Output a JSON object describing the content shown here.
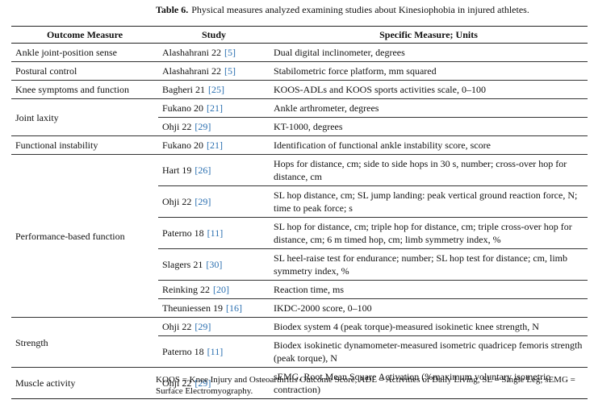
{
  "caption": {
    "label": "Table 6.",
    "text": "Physical measures analyzed examining studies about Kinesiophobia in injured athletes."
  },
  "table": {
    "headers": [
      "Outcome Measure",
      "Study",
      "Specific Measure; Units"
    ],
    "groups": [
      {
        "outcome": "Ankle joint-position sense",
        "rows": [
          {
            "study": "Alashahrani 22",
            "ref": "[5]",
            "measure": "Dual digital inclinometer, degrees"
          }
        ]
      },
      {
        "outcome": "Postural control",
        "rows": [
          {
            "study": "Alashahrani 22",
            "ref": "[5]",
            "measure": "Stabilometric force platform, mm squared"
          }
        ]
      },
      {
        "outcome": "Knee symptoms and function",
        "rows": [
          {
            "study": "Bagheri 21",
            "ref": "[25]",
            "measure": "KOOS-ADLs and KOOS sports activities scale, 0–100"
          }
        ]
      },
      {
        "outcome": "Joint laxity",
        "rows": [
          {
            "study": "Fukano 20",
            "ref": "[21]",
            "measure": "Ankle arthrometer, degrees"
          },
          {
            "study": "Ohji 22",
            "ref": "[29]",
            "measure": "KT-1000, degrees"
          }
        ]
      },
      {
        "outcome": "Functional instability",
        "rows": [
          {
            "study": "Fukano 20",
            "ref": "[21]",
            "measure": "Identification of functional ankle instability score, score"
          }
        ]
      },
      {
        "outcome": "Performance-based function",
        "rows": [
          {
            "study": "Hart 19",
            "ref": "[26]",
            "measure": "Hops for distance, cm; side to side hops in 30 s, number; cross-over hop for distance, cm"
          },
          {
            "study": "Ohji 22",
            "ref": "[29]",
            "measure": "SL hop distance, cm; SL jump landing: peak vertical ground reaction force, N; time to peak force; s"
          },
          {
            "study": "Paterno 18",
            "ref": "[11]",
            "measure": "SL hop for distance, cm; triple hop for distance, cm; triple cross-over hop for distance, cm; 6 m timed hop, cm; limb symmetry index, %"
          },
          {
            "study": "Slagers 21",
            "ref": "[30]",
            "measure": "SL heel-raise test for endurance; number; SL hop test for distance; cm, limb symmetry index, %"
          },
          {
            "study": "Reinking 22",
            "ref": "[20]",
            "measure": "Reaction time, ms"
          },
          {
            "study": "Theuniessen 19",
            "ref": "[16]",
            "measure": "IKDC-2000 score, 0–100"
          }
        ]
      },
      {
        "outcome": "Strength",
        "rows": [
          {
            "study": "Ohji 22",
            "ref": "[29]",
            "measure": "Biodex system 4 (peak torque)-measured isokinetic knee strength, N"
          },
          {
            "study": "Paterno 18",
            "ref": "[11]",
            "measure": "Biodex isokinetic dynamometer-measured isometric quadricep femoris strength (peak torque), N"
          }
        ]
      },
      {
        "outcome": "Muscle activity",
        "rows": [
          {
            "study": "Ohji 22",
            "ref": "[29]",
            "measure": "sEMG, Root Mean Square Activation (%maximum voluntary isometric contraction)"
          }
        ]
      }
    ]
  },
  "footnote": "KOOS = Knee Injury and Osteoarthritis Outcome Score, ADL = Activities of Daily Living, SL = Single Leg; sEMG = Surface Electromyography."
}
